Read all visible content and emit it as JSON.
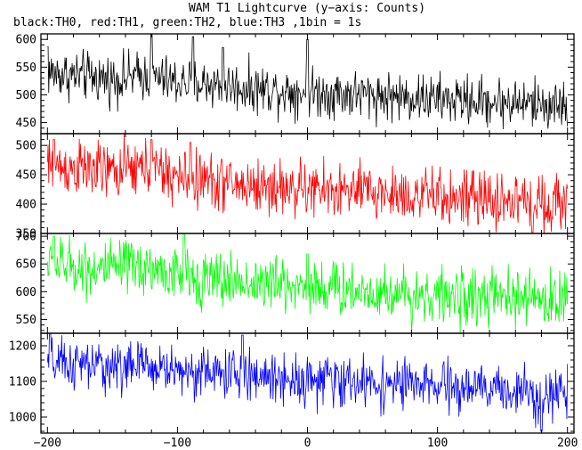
{
  "chart_data": {
    "type": "line",
    "title": "WAM T1 Lightcurve (y−axis: Counts)",
    "subtitle": "black:TH0, red:TH1, green:TH2, blue:TH3 ,1bin = 1s",
    "xlim": [
      -205,
      205
    ],
    "x_ticks": [
      -200,
      -100,
      0,
      100,
      200
    ],
    "x_tick_labels": [
      "−200",
      "−100",
      "0",
      "100",
      "200"
    ],
    "grid": false,
    "panels": [
      {
        "series": "TH0",
        "color": "#000000",
        "ylim": [
          430,
          610
        ],
        "y_ticks": [
          450,
          500,
          550,
          600
        ],
        "profile_x": [
          -200,
          -150,
          -125,
          -100,
          -75,
          -50,
          0,
          50,
          100,
          150,
          200
        ],
        "profile_y": [
          540,
          528,
          535,
          522,
          520,
          513,
          505,
          500,
          492,
          487,
          480
        ],
        "noise": 22,
        "features": [
          [
            -120,
            610
          ],
          [
            -88,
            605
          ],
          [
            0,
            600
          ],
          [
            -65,
            585
          ],
          [
            -200,
            587
          ]
        ]
      },
      {
        "series": "TH1",
        "color": "#ff0000",
        "ylim": [
          350,
          520
        ],
        "y_ticks": [
          350,
          400,
          450,
          500
        ],
        "profile_x": [
          -200,
          -150,
          -125,
          -100,
          -75,
          -50,
          0,
          50,
          100,
          150,
          200
        ],
        "profile_y": [
          465,
          455,
          462,
          445,
          440,
          432,
          425,
          420,
          412,
          405,
          402
        ],
        "noise": 24,
        "features": [
          [
            -195,
            510
          ],
          [
            -120,
            510
          ],
          [
            -90,
            505
          ],
          [
            173,
            352
          ]
        ]
      },
      {
        "series": "TH2",
        "color": "#00ff00",
        "ylim": [
          525,
          705
        ],
        "y_ticks": [
          550,
          600,
          650,
          700
        ],
        "profile_x": [
          -200,
          -150,
          -125,
          -100,
          -75,
          -50,
          0,
          50,
          100,
          150,
          200
        ],
        "profile_y": [
          650,
          640,
          645,
          628,
          622,
          618,
          610,
          600,
          592,
          588,
          585
        ],
        "noise": 25,
        "features": [
          [
            -195,
            700
          ],
          [
            -95,
            705
          ],
          [
            0,
            668
          ]
        ]
      },
      {
        "series": "TH3",
        "color": "#0000ff",
        "ylim": [
          955,
          1235
        ],
        "y_ticks": [
          1000,
          1100,
          1200
        ],
        "profile_x": [
          -200,
          -150,
          -125,
          -100,
          -75,
          -50,
          0,
          50,
          100,
          150,
          200
        ],
        "profile_y": [
          1150,
          1140,
          1145,
          1130,
          1125,
          1118,
          1105,
          1095,
          1085,
          1075,
          1065
        ],
        "noise": 35,
        "features": [
          [
            -198,
            1235
          ],
          [
            -50,
            1230
          ],
          [
            180,
            960
          ]
        ]
      }
    ]
  }
}
